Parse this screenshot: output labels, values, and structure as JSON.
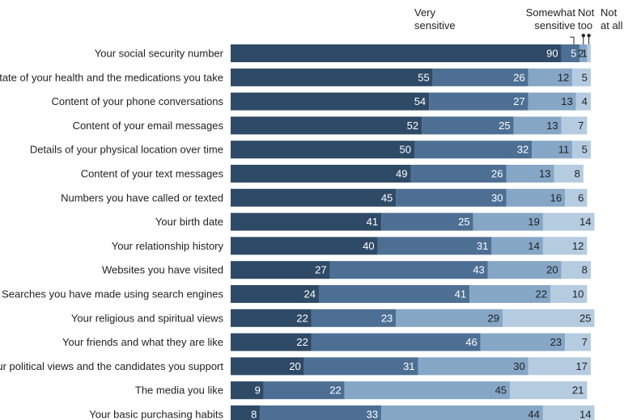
{
  "chart_data": {
    "type": "bar",
    "orientation": "horizontal",
    "stacked": true,
    "categories": [
      "Your social security number",
      "State of your health and the medications you take",
      "Content of your phone conversations",
      "Content of your email messages",
      "Details of your physical location over time",
      "Content of your text messages",
      "Numbers you have called or texted",
      "Your birth date",
      "Your relationship history",
      "Websites you have visited",
      "Searches you have made using search engines",
      "Your religious and spiritual views",
      "Your friends and what they are like",
      "Your political views and the candidates you support",
      "The media you like",
      "Your basic purchasing habits"
    ],
    "series": [
      {
        "name": "Very sensitive",
        "name_lines": [
          "Very",
          "sensitive"
        ],
        "color": "#2f4a66",
        "values": [
          90,
          55,
          54,
          52,
          50,
          49,
          45,
          41,
          40,
          27,
          24,
          22,
          22,
          20,
          9,
          8
        ]
      },
      {
        "name": "Somewhat sensitive",
        "name_lines": [
          "Somewhat",
          "sensitive"
        ],
        "color": "#4d6f94",
        "values": [
          5,
          26,
          27,
          25,
          32,
          26,
          30,
          25,
          31,
          43,
          41,
          23,
          46,
          31,
          22,
          33
        ]
      },
      {
        "name": "Not too",
        "name_lines": [
          "Not",
          "too"
        ],
        "color": "#86a6c6",
        "values": [
          2,
          12,
          13,
          13,
          11,
          13,
          16,
          19,
          14,
          20,
          22,
          29,
          23,
          30,
          45,
          44
        ]
      },
      {
        "name": "Not at all",
        "name_lines": [
          "Not",
          "at all"
        ],
        "color": "#b5cbe0",
        "values": [
          1,
          5,
          4,
          7,
          5,
          8,
          6,
          14,
          12,
          8,
          10,
          25,
          7,
          17,
          21,
          14
        ]
      }
    ],
    "xlim": [
      0,
      100
    ],
    "grid": false,
    "legend": "top"
  }
}
